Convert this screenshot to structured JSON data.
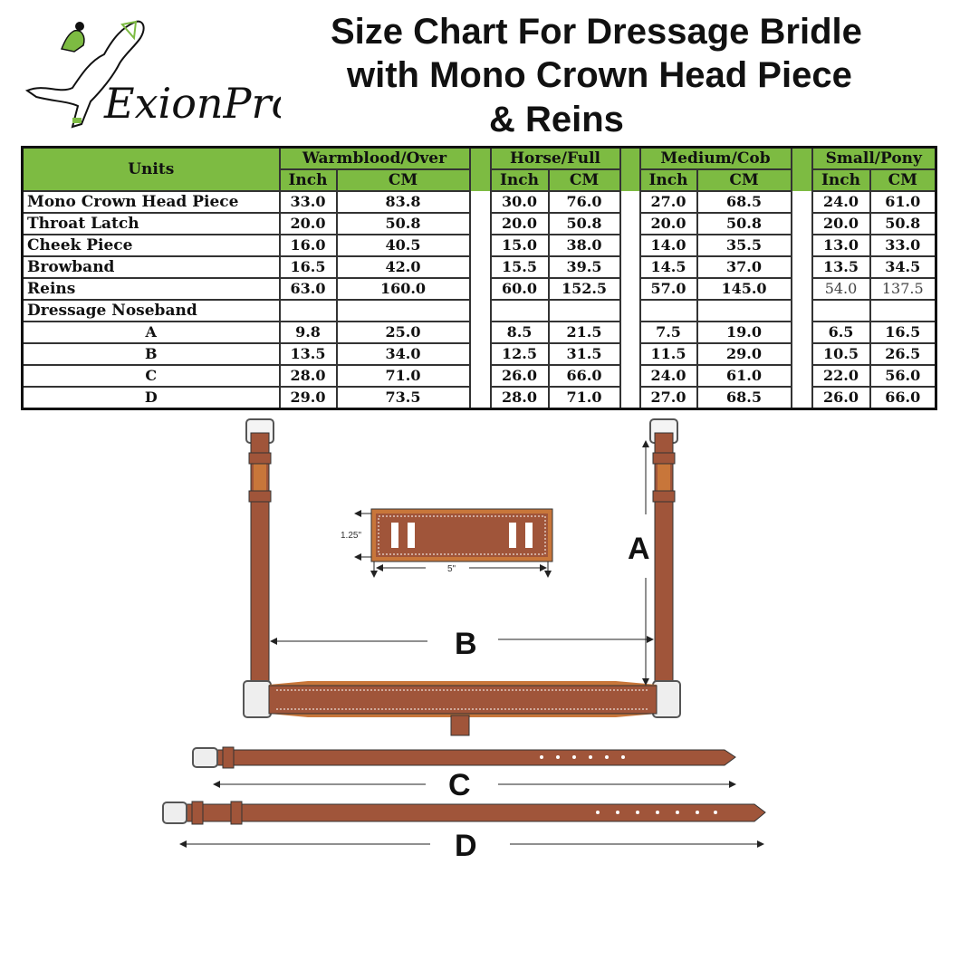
{
  "logo": {
    "brand": "ExionPro",
    "accent": "#7dbb42"
  },
  "title": {
    "line1": "Size Chart For Dressage Bridle",
    "line2": "with Mono Crown Head Piece",
    "line3": "& Reins"
  },
  "table": {
    "units_label": "Units",
    "header_color": "#7dbb42",
    "groups": [
      "Warmblood/Over",
      "Horse/Full",
      "Medium/Cob",
      "Small/Pony"
    ],
    "subheaders": [
      "Inch",
      "CM"
    ],
    "rows": [
      {
        "label": "Mono Crown Head Piece",
        "values": [
          "33.0",
          "83.8",
          "30.0",
          "76.0",
          "27.0",
          "68.5",
          "24.0",
          "61.0"
        ]
      },
      {
        "label": "Throat Latch",
        "values": [
          "20.0",
          "50.8",
          "20.0",
          "50.8",
          "20.0",
          "50.8",
          "20.0",
          "50.8"
        ]
      },
      {
        "label": "Cheek Piece",
        "values": [
          "16.0",
          "40.5",
          "15.0",
          "38.0",
          "14.0",
          "35.5",
          "13.0",
          "33.0"
        ]
      },
      {
        "label": "Browband",
        "values": [
          "16.5",
          "42.0",
          "15.5",
          "39.5",
          "14.5",
          "37.0",
          "13.5",
          "34.5"
        ]
      },
      {
        "label": "Reins",
        "values": [
          "63.0",
          "160.0",
          "60.0",
          "152.5",
          "57.0",
          "145.0",
          "54.0",
          "137.5"
        ]
      },
      {
        "label": "Dressage Noseband",
        "values": [
          "",
          "",
          "",
          "",
          "",
          "",
          "",
          ""
        ]
      },
      {
        "label": "A",
        "sub": true,
        "values": [
          "9.8",
          "25.0",
          "8.5",
          "21.5",
          "7.5",
          "19.0",
          "6.5",
          "16.5"
        ]
      },
      {
        "label": "B",
        "sub": true,
        "values": [
          "13.5",
          "34.0",
          "12.5",
          "31.5",
          "11.5",
          "29.0",
          "10.5",
          "26.5"
        ]
      },
      {
        "label": "C",
        "sub": true,
        "values": [
          "28.0",
          "71.0",
          "26.0",
          "66.0",
          "24.0",
          "61.0",
          "22.0",
          "56.0"
        ]
      },
      {
        "label": "D",
        "sub": true,
        "values": [
          "29.0",
          "73.5",
          "28.0",
          "71.0",
          "27.0",
          "68.5",
          "26.0",
          "66.0"
        ]
      }
    ]
  },
  "diagram": {
    "leather_color": "#a0553a",
    "leather_light": "#c8763a",
    "label_a": "A",
    "label_b": "B",
    "label_c": "C",
    "label_d": "D",
    "pad_height": "1.25\"",
    "pad_width": "5\""
  }
}
